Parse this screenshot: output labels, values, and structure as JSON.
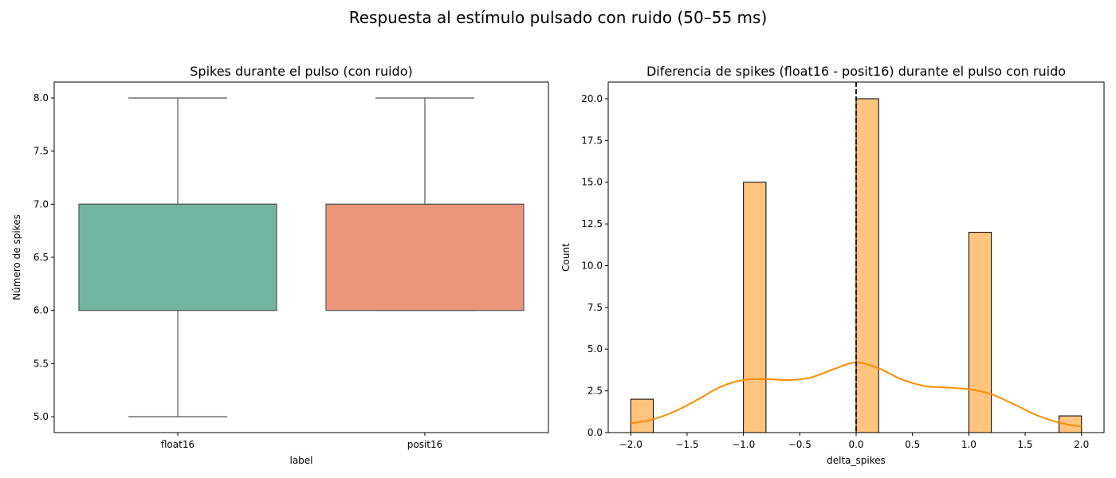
{
  "figure": {
    "suptitle": "Respuesta al estímulo pulsado con ruido (50–55 ms)"
  },
  "chart_data": [
    {
      "type": "box",
      "title": "Spikes durante el pulso (con ruido)",
      "xlabel": "label",
      "ylabel": "Número de spikes",
      "categories": [
        "float16",
        "posit16"
      ],
      "boxes": [
        {
          "name": "float16",
          "whisker_low": 5.0,
          "q1": 6.0,
          "median": 7.0,
          "q3": 7.0,
          "whisker_high": 8.0,
          "color": "#72b6a1"
        },
        {
          "name": "posit16",
          "whisker_low": 6.0,
          "q1": 6.0,
          "median": 7.0,
          "q3": 7.0,
          "whisker_high": 8.0,
          "color": "#e9967a"
        }
      ],
      "ylim": [
        4.85,
        8.15
      ],
      "yticks": [
        5.0,
        5.5,
        6.0,
        6.5,
        7.0,
        7.5,
        8.0
      ],
      "ytick_labels": [
        "5.0",
        "5.5",
        "6.0",
        "6.5",
        "7.0",
        "7.5",
        "8.0"
      ],
      "grid": false
    },
    {
      "type": "histogram",
      "title": "Diferencia de spikes (float16 - posit16) durante el pulso con ruido",
      "xlabel": "delta_spikes",
      "ylabel": "Count",
      "bins": [
        {
          "x0": -2.0,
          "x1": -1.8,
          "count": 2
        },
        {
          "x0": -1.0,
          "x1": -0.8,
          "count": 15
        },
        {
          "x0": 0.0,
          "x1": 0.2,
          "count": 20
        },
        {
          "x0": 1.0,
          "x1": 1.2,
          "count": 12
        },
        {
          "x0": 1.8,
          "x1": 2.0,
          "count": 1
        }
      ],
      "kde": {
        "x": [
          -2.0,
          -1.8,
          -1.6,
          -1.4,
          -1.2,
          -1.0,
          -0.8,
          -0.6,
          -0.4,
          -0.2,
          0.0,
          0.2,
          0.4,
          0.6,
          0.8,
          1.0,
          1.2,
          1.4,
          1.6,
          1.8,
          2.0
        ],
        "y": [
          0.55,
          0.8,
          1.3,
          2.0,
          2.75,
          3.15,
          3.2,
          3.15,
          3.3,
          3.8,
          4.2,
          3.85,
          3.2,
          2.8,
          2.7,
          2.6,
          2.3,
          1.7,
          1.05,
          0.6,
          0.35
        ]
      },
      "vline_x": 0.0,
      "xlim": [
        -2.2,
        2.2
      ],
      "ylim": [
        0,
        21.0
      ],
      "xticks": [
        -2.0,
        -1.5,
        -1.0,
        -0.5,
        0.0,
        0.5,
        1.0,
        1.5,
        2.0
      ],
      "xtick_labels": [
        "−2.0",
        "−1.5",
        "−1.0",
        "−0.5",
        "0.0",
        "0.5",
        "1.0",
        "1.5",
        "2.0"
      ],
      "yticks": [
        0.0,
        2.5,
        5.0,
        7.5,
        10.0,
        12.5,
        15.0,
        17.5,
        20.0
      ],
      "ytick_labels": [
        "0.0",
        "2.5",
        "5.0",
        "7.5",
        "10.0",
        "12.5",
        "15.0",
        "17.5",
        "20.0"
      ],
      "bar_color": "#ffc47d",
      "kde_color": "#ff8c00",
      "grid": false
    }
  ]
}
